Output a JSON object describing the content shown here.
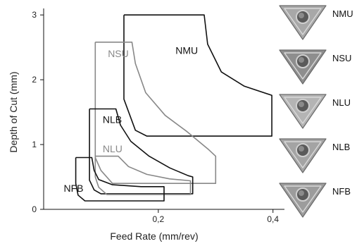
{
  "chart_data": {
    "type": "area",
    "xlabel": "Feed Rate (mm/rev)",
    "ylabel": "Depth of Cut (mm)",
    "xlim": [
      0,
      0.42
    ],
    "ylim": [
      0,
      3.1
    ],
    "x_ticks": [
      {
        "value": 0.2,
        "label": "0,2"
      },
      {
        "value": 0.4,
        "label": "0,4"
      }
    ],
    "y_ticks": [
      {
        "value": 0,
        "label": "0"
      },
      {
        "value": 1,
        "label": "1"
      },
      {
        "value": 2,
        "label": "2"
      },
      {
        "value": 3,
        "label": "3"
      }
    ],
    "grid": false,
    "series": [
      {
        "name": "NMU",
        "color": "#111111",
        "points": [
          [
            0.14,
            3.0
          ],
          [
            0.28,
            3.0
          ],
          [
            0.286,
            2.55
          ],
          [
            0.31,
            2.12
          ],
          [
            0.35,
            1.9
          ],
          [
            0.398,
            1.76
          ],
          [
            0.398,
            1.13
          ],
          [
            0.18,
            1.13
          ],
          [
            0.16,
            1.22
          ],
          [
            0.14,
            1.7
          ],
          [
            0.14,
            3.0
          ]
        ]
      },
      {
        "name": "NSU",
        "color": "#888888",
        "points": [
          [
            0.09,
            2.58
          ],
          [
            0.154,
            2.58
          ],
          [
            0.16,
            2.25
          ],
          [
            0.178,
            1.8
          ],
          [
            0.212,
            1.45
          ],
          [
            0.25,
            1.2
          ],
          [
            0.288,
            0.92
          ],
          [
            0.3,
            0.82
          ],
          [
            0.3,
            0.4
          ],
          [
            0.12,
            0.4
          ],
          [
            0.1,
            0.6
          ],
          [
            0.09,
            0.8
          ],
          [
            0.09,
            2.58
          ]
        ]
      },
      {
        "name": "NLB",
        "color": "#111111",
        "points": [
          [
            0.08,
            1.55
          ],
          [
            0.126,
            1.55
          ],
          [
            0.134,
            1.3
          ],
          [
            0.152,
            1.05
          ],
          [
            0.184,
            0.82
          ],
          [
            0.22,
            0.64
          ],
          [
            0.252,
            0.52
          ],
          [
            0.26,
            0.5
          ],
          [
            0.26,
            0.24
          ],
          [
            0.1,
            0.24
          ],
          [
            0.088,
            0.3
          ],
          [
            0.08,
            0.45
          ],
          [
            0.08,
            1.55
          ]
        ]
      },
      {
        "name": "NLU",
        "color": "#888888",
        "points": [
          [
            0.09,
            0.82
          ],
          [
            0.13,
            0.82
          ],
          [
            0.148,
            0.66
          ],
          [
            0.18,
            0.54
          ],
          [
            0.22,
            0.47
          ],
          [
            0.256,
            0.44
          ],
          [
            0.256,
            0.23
          ],
          [
            0.11,
            0.23
          ],
          [
            0.096,
            0.34
          ],
          [
            0.09,
            0.5
          ],
          [
            0.09,
            0.82
          ]
        ]
      },
      {
        "name": "NFB",
        "color": "#111111",
        "points": [
          [
            0.056,
            0.8
          ],
          [
            0.084,
            0.8
          ],
          [
            0.088,
            0.6
          ],
          [
            0.096,
            0.46
          ],
          [
            0.12,
            0.38
          ],
          [
            0.17,
            0.35
          ],
          [
            0.21,
            0.35
          ],
          [
            0.21,
            0.13
          ],
          [
            0.072,
            0.13
          ],
          [
            0.06,
            0.22
          ],
          [
            0.056,
            0.4
          ],
          [
            0.056,
            0.8
          ]
        ]
      }
    ],
    "region_labels": [
      {
        "name": "NMU",
        "x": 0.23,
        "y": 2.4,
        "color": "#111111"
      },
      {
        "name": "NSU",
        "x": 0.112,
        "y": 2.35,
        "color": "#888888"
      },
      {
        "name": "NLB",
        "x": 0.103,
        "y": 1.33,
        "color": "#111111"
      },
      {
        "name": "NLU",
        "x": 0.103,
        "y": 0.88,
        "color": "#888888"
      },
      {
        "name": "NFB",
        "x": 0.035,
        "y": 0.27,
        "color": "#111111"
      }
    ]
  },
  "inserts": [
    {
      "name": "NMU",
      "icon": "triangular-insert-NMU",
      "shade": "#a8a8a8"
    },
    {
      "name": "NSU",
      "icon": "triangular-insert-NSU",
      "shade": "#8e8e8e"
    },
    {
      "name": "NLU",
      "icon": "triangular-insert-NLU",
      "shade": "#b4b4b4"
    },
    {
      "name": "NLB",
      "icon": "triangular-insert-NLB",
      "shade": "#a4a4a4"
    },
    {
      "name": "NFB",
      "icon": "triangular-insert-NFB",
      "shade": "#9c9c9c"
    }
  ]
}
